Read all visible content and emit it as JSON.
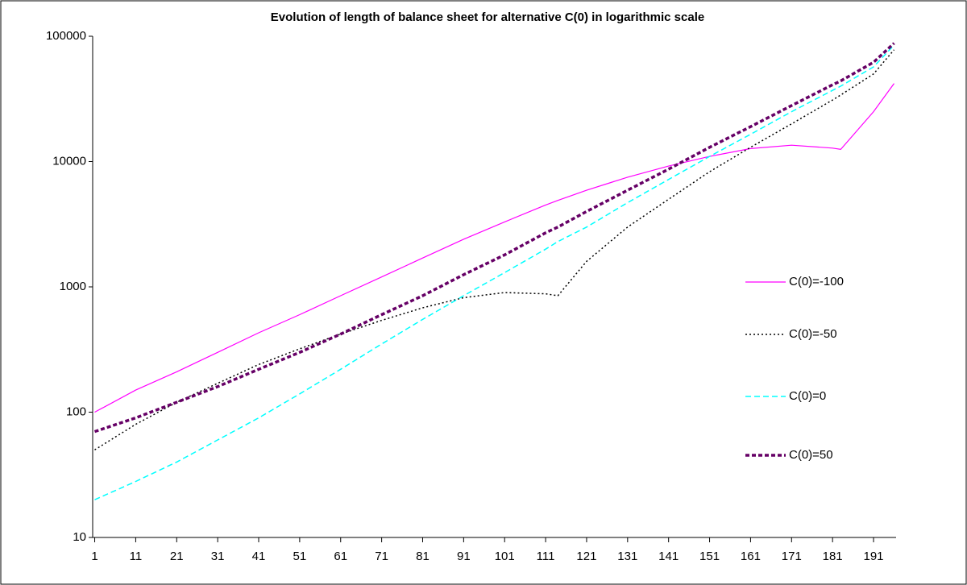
{
  "chart_data": {
    "type": "line",
    "title": "Evolution of length of balance sheet for alternative C(0) in logarithmic scale",
    "log_y": true,
    "x": [
      1,
      11,
      21,
      31,
      41,
      51,
      61,
      71,
      81,
      91,
      101,
      111,
      114,
      121,
      131,
      141,
      151,
      161,
      171,
      181,
      183,
      191,
      196
    ],
    "xlim": [
      0.5,
      196.5
    ],
    "xticks": [
      1,
      11,
      21,
      31,
      41,
      51,
      61,
      71,
      81,
      91,
      101,
      111,
      121,
      131,
      141,
      151,
      161,
      171,
      181,
      191
    ],
    "ylim": [
      10,
      100000
    ],
    "yticks": [
      10,
      100,
      1000,
      10000,
      100000
    ],
    "legend": "right",
    "series": [
      {
        "name": "C(0)=-100",
        "color": "#ff00ff",
        "style": "solid",
        "values": [
          100,
          150,
          210,
          300,
          430,
          600,
          850,
          1200,
          1700,
          2400,
          3300,
          4500,
          4900,
          5900,
          7500,
          9200,
          11000,
          12700,
          13500,
          12800,
          12500,
          25000,
          42000
        ]
      },
      {
        "name": "C(0)=-50",
        "color": "#000000",
        "style": "dotted",
        "values": [
          50,
          80,
          120,
          170,
          240,
          320,
          420,
          540,
          680,
          820,
          900,
          880,
          850,
          1600,
          3000,
          5000,
          8300,
          13000,
          20000,
          31000,
          34000,
          50000,
          78000
        ]
      },
      {
        "name": "C(0)=0",
        "color": "#00ffff",
        "style": "dashed",
        "values": [
          20,
          28,
          40,
          60,
          90,
          140,
          220,
          350,
          550,
          850,
          1300,
          2000,
          2300,
          3000,
          4700,
          7200,
          11000,
          16500,
          25000,
          37000,
          40000,
          57000,
          85000
        ]
      },
      {
        "name": "C(0)=50",
        "color": "#660066",
        "style": "thick-dashed",
        "values": [
          70,
          90,
          120,
          160,
          220,
          300,
          420,
          600,
          850,
          1250,
          1800,
          2700,
          3000,
          4000,
          5900,
          8700,
          13000,
          19000,
          28000,
          41000,
          44000,
          62000,
          88000
        ]
      }
    ]
  }
}
